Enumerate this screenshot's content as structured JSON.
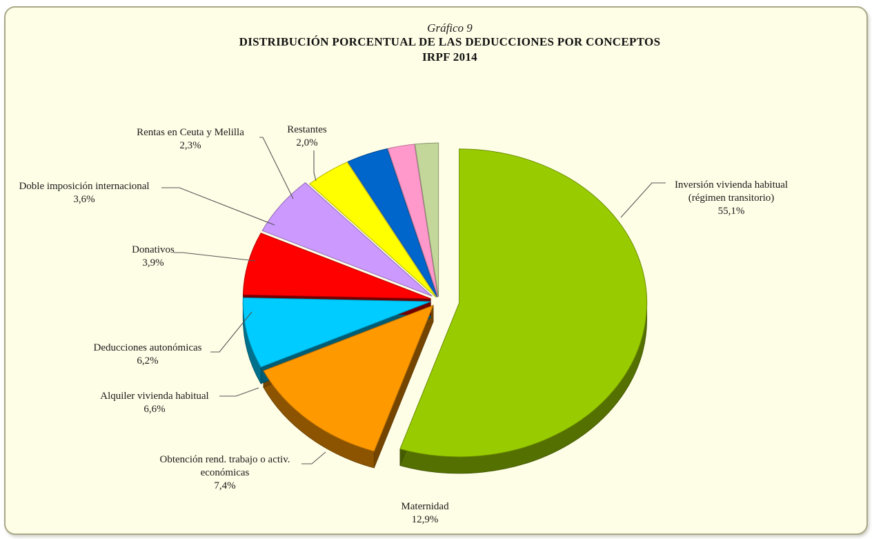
{
  "chart_data": {
    "type": "pie",
    "supertitle": "Gráfico 9",
    "title": "DISTRIBUCIÓN  PORCENTUAL DE LAS DEDUCCIONES POR CONCEPTOS",
    "subtitle": "IRPF 2014",
    "slices": [
      {
        "label": [
          "Inversión vivienda  habitual",
          "(régimen transitorio)"
        ],
        "value": 55.1,
        "value_label": "55,1%",
        "color": "#99cc00"
      },
      {
        "label": [
          "Maternidad"
        ],
        "value": 12.9,
        "value_label": "12,9%",
        "color": "#ff9900"
      },
      {
        "label": [
          "Obtención rend. trabajo o activ.",
          "económicas"
        ],
        "value": 7.4,
        "value_label": "7,4%",
        "color": "#00ccff"
      },
      {
        "label": [
          "Alquiler vivienda  habitual"
        ],
        "value": 6.6,
        "value_label": "6,6%",
        "color": "#ff0000"
      },
      {
        "label": [
          "Deducciones autonómicas"
        ],
        "value": 6.2,
        "value_label": "6,2%",
        "color": "#cc99ff"
      },
      {
        "label": [
          "Donativos"
        ],
        "value": 3.9,
        "value_label": "3,9%",
        "color": "#ffff00"
      },
      {
        "label": [
          "Doble imposición internacional"
        ],
        "value": 3.6,
        "value_label": "3,6%",
        "color": "#0066cc"
      },
      {
        "label": [
          "Rentas en Ceuta y Melilla"
        ],
        "value": 2.3,
        "value_label": "2,3%",
        "color": "#ff99cc"
      },
      {
        "label": [
          "Restantes"
        ],
        "value": 2.0,
        "value_label": "2,0%",
        "color": "#c4d79b"
      }
    ]
  }
}
